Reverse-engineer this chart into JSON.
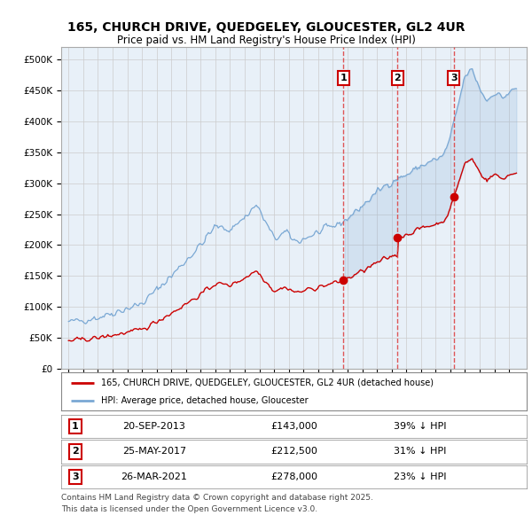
{
  "title_line1": "165, CHURCH DRIVE, QUEDGELEY, GLOUCESTER, GL2 4UR",
  "title_line2": "Price paid vs. HM Land Registry's House Price Index (HPI)",
  "ylim": [
    0,
    520000
  ],
  "yticks": [
    0,
    50000,
    100000,
    150000,
    200000,
    250000,
    300000,
    350000,
    400000,
    450000,
    500000
  ],
  "ytick_labels": [
    "£0",
    "£50K",
    "£100K",
    "£150K",
    "£200K",
    "£250K",
    "£300K",
    "£350K",
    "£400K",
    "£450K",
    "£500K"
  ],
  "background_color": "#ffffff",
  "plot_bg_color": "#e8f0f8",
  "sale_color": "#cc0000",
  "hpi_color": "#7aa8d4",
  "vline_color": "#dd4444",
  "purchases": [
    {
      "date_num": 2013.72,
      "price": 143000,
      "label": "1"
    },
    {
      "date_num": 2017.4,
      "price": 212500,
      "label": "2"
    },
    {
      "date_num": 2021.23,
      "price": 278000,
      "label": "3"
    }
  ],
  "purchase_dates": [
    "20-SEP-2013",
    "25-MAY-2017",
    "26-MAR-2021"
  ],
  "purchase_prices": [
    143000,
    212500,
    278000
  ],
  "purchase_pcts": [
    "39% ↓ HPI",
    "31% ↓ HPI",
    "23% ↓ HPI"
  ],
  "legend_sale_label": "165, CHURCH DRIVE, QUEDGELEY, GLOUCESTER, GL2 4UR (detached house)",
  "legend_hpi_label": "HPI: Average price, detached house, Gloucester",
  "footer_line1": "Contains HM Land Registry data © Crown copyright and database right 2025.",
  "footer_line2": "This data is licensed under the Open Government Licence v3.0.",
  "xlim_start": 1994.5,
  "xlim_end": 2026.2
}
